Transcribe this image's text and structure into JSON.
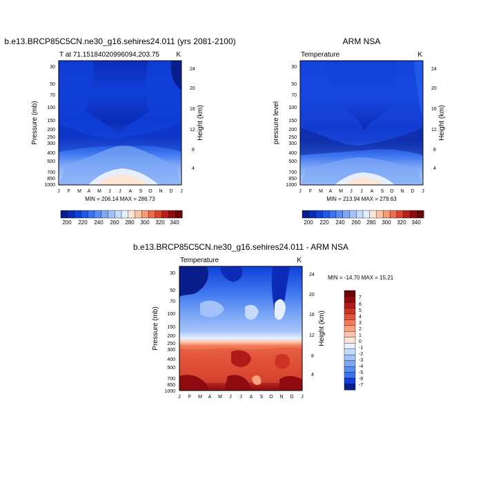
{
  "chart_data": [
    {
      "type": "heatmap",
      "title": "b.e13.BRCP85C5CN.ne30_g16.sehires24.011 (yrs 2081-2100)",
      "left_label": "T at 71.15184020996094,203.75",
      "right_label": "K",
      "ylabel": "Pressure (mb)",
      "y2label": "Height (km)",
      "x_ticks": [
        "J",
        "F",
        "M",
        "A",
        "M",
        "J",
        "J",
        "A",
        "S",
        "O",
        "N",
        "D",
        "J"
      ],
      "y_ticks": [
        30,
        50,
        70,
        100,
        150,
        200,
        250,
        300,
        400,
        500,
        700,
        850,
        1000
      ],
      "y2_ticks": [
        24,
        20,
        16,
        12,
        8,
        4
      ],
      "ylim": [
        1000,
        20
      ],
      "stats": "MIN = 206.14 MAX = 286.73",
      "min": 206.14,
      "max": 286.73
    },
    {
      "type": "heatmap",
      "title": "ARM NSA",
      "left_label": "Temperature",
      "right_label": "K",
      "ylabel": "pressure level",
      "y2label": "Height (km)",
      "x_ticks": [
        "J",
        "F",
        "M",
        "A",
        "M",
        "J",
        "J",
        "A",
        "S",
        "O",
        "N",
        "D",
        "J"
      ],
      "y_ticks": [
        30,
        50,
        70,
        100,
        150,
        200,
        250,
        300,
        400,
        500,
        700,
        850,
        1000
      ],
      "y2_ticks": [
        24,
        20,
        16,
        12,
        8,
        4
      ],
      "ylim": [
        1000,
        20
      ],
      "stats": "MIN = 213.94 MAX = 279.63",
      "min": 213.94,
      "max": 279.63
    },
    {
      "type": "heatmap",
      "title": "b.e13.BRCP85C5CN.ne30_g16.sehires24.011 - ARM NSA",
      "left_label": "Temperature",
      "right_label": "K",
      "ylabel": "Pressure (mb)",
      "y2label": "Height (km)",
      "x_ticks": [
        "J",
        "F",
        "M",
        "A",
        "M",
        "J",
        "J",
        "A",
        "S",
        "O",
        "N",
        "D",
        "J"
      ],
      "y_ticks": [
        30,
        50,
        70,
        100,
        150,
        200,
        250,
        300,
        400,
        500,
        700,
        850,
        1000
      ],
      "y2_ticks": [
        24,
        20,
        16,
        12,
        8,
        4
      ],
      "ylim": [
        1000,
        20
      ],
      "stats": "MIN = -14.70 MAX =  15.21",
      "min": -14.7,
      "max": 15.21
    }
  ],
  "colorbars": {
    "absolute": {
      "labels": [
        "200",
        "220",
        "240",
        "260",
        "280",
        "300",
        "320",
        "340"
      ],
      "colors": [
        "#0a1d8c",
        "#0c2cb8",
        "#1040d8",
        "#2159e8",
        "#3a73ef",
        "#5a8df3",
        "#7ea8f6",
        "#a2c2f9",
        "#c6dafc",
        "#e6efff",
        "#fde5d5",
        "#fcc2a5",
        "#f79b76",
        "#ec6e4c",
        "#d8452d",
        "#b8211a",
        "#8f0b10",
        "#6a0509"
      ]
    },
    "difference": {
      "labels": [
        "7",
        "6",
        "5",
        "4",
        "3",
        "2",
        "1",
        "0",
        "-1",
        "-2",
        "-3",
        "-4",
        "-5",
        "-6",
        "-7"
      ],
      "colors": [
        "#6a0509",
        "#8f0b10",
        "#b01a17",
        "#cc3324",
        "#e2543a",
        "#f27a58",
        "#f9a280",
        "#fcc6aa",
        "#fde5d5",
        "#e6efff",
        "#c6dafc",
        "#a2c2f9",
        "#7ea8f6",
        "#5a8df3",
        "#3a73ef",
        "#1040d8",
        "#0a1d8c"
      ]
    }
  }
}
